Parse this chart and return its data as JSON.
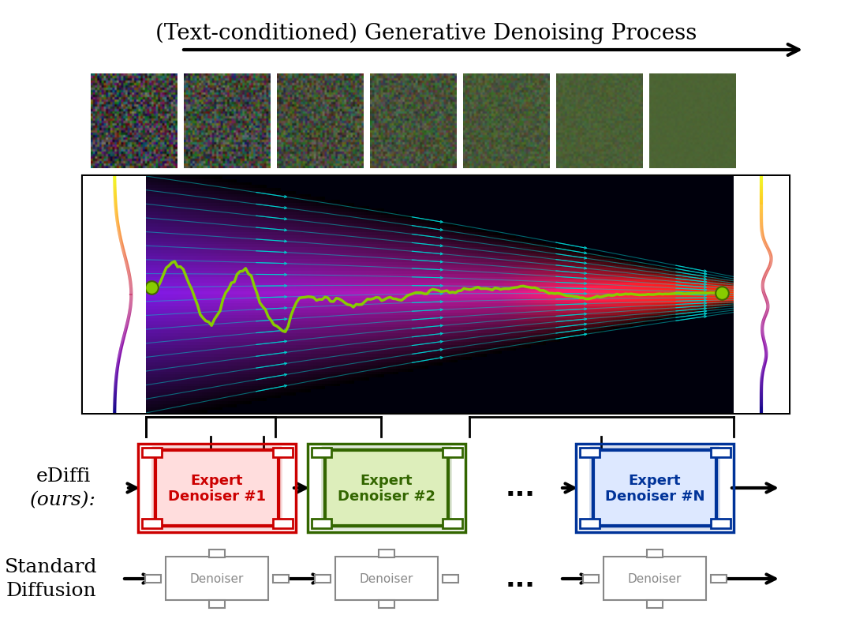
{
  "title": "(Text-conditioned) Generative Denoising Process",
  "title_fontsize": 20,
  "background_color": "#ffffff",
  "ediffi_label": "eDiffi\n(ours):",
  "standard_label": "Standard\nDiffusion",
  "expert_boxes": [
    {
      "label": "Expert\nDenoiser #1",
      "color": "#cc0000"
    },
    {
      "label": "Expert\nDenoiser #2",
      "color": "#336600"
    },
    {
      "label": "Expert\nDenoiser #N",
      "color": "#003399"
    }
  ],
  "standard_boxes": [
    {
      "label": "Denoiser",
      "color": "#888888"
    },
    {
      "label": "Denoiser",
      "color": "#888888"
    },
    {
      "label": "Denoiser",
      "color": "#888888"
    }
  ],
  "dots_label": "...",
  "arrow_color": "#111111"
}
